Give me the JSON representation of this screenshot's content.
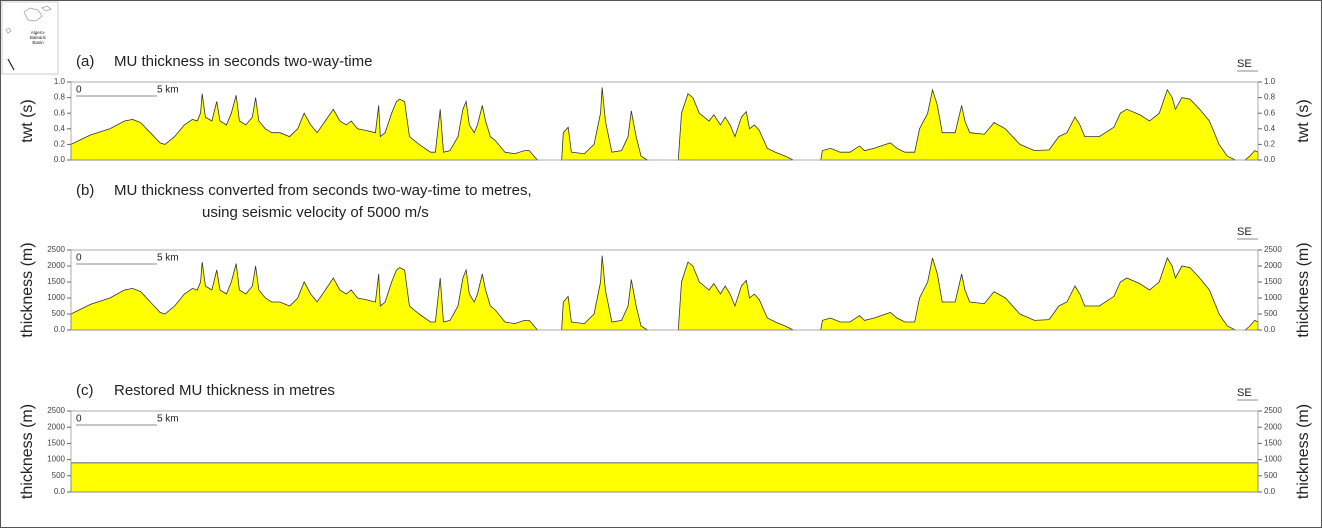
{
  "inset_label": [
    "Algero-",
    "Balearic",
    "Basin"
  ],
  "chart_data": [
    {
      "type": "area",
      "panel_label": "(a)",
      "title": "MU thickness in seconds two-way-time",
      "direction_label": "SE",
      "y_label": "twt (s)",
      "color": "#ffff00",
      "xlim": [
        0,
        73.3
      ],
      "ylim": [
        0,
        1.0
      ],
      "yticks": [
        {
          "value": 0,
          "label": "0.0"
        },
        0.2,
        0.4,
        0.6,
        0.8,
        {
          "value": 1,
          "label": "1.0"
        }
      ],
      "scale_bar": [
        0,
        {
          "value": 5,
          "label": "5 km"
        }
      ],
      "x": [
        0.0,
        1.2,
        2.4,
        3.3,
        3.8,
        4.3,
        4.9,
        5.5,
        5.8,
        6.4,
        7.0,
        7.5,
        7.8,
        8.0,
        8.1,
        8.3,
        8.7,
        9.0,
        9.2,
        9.6,
        9.9,
        10.2,
        10.4,
        10.8,
        11.2,
        11.4,
        11.6,
        12.0,
        12.4,
        12.9,
        13.5,
        14.0,
        14.4,
        14.8,
        15.2,
        15.7,
        16.2,
        16.6,
        17.0,
        17.3,
        17.7,
        18.2,
        18.8,
        19.0,
        19.1,
        19.4,
        19.8,
        20.1,
        20.3,
        20.6,
        20.9,
        21.5,
        22.2,
        22.5,
        22.8,
        23.0,
        23.4,
        23.9,
        24.2,
        24.4,
        24.6,
        24.9,
        25.1,
        25.4,
        25.6,
        25.9,
        26.2,
        26.8,
        27.4,
        28.0,
        28.3,
        28.8,
        29.5,
        30.3,
        30.4,
        30.7,
        30.9,
        31.7,
        32.3,
        32.7,
        32.8,
        33.0,
        33.4,
        34.0,
        34.4,
        34.6,
        34.9,
        35.2,
        35.6,
        36.8,
        37.5,
        37.7,
        38.1,
        38.4,
        38.8,
        39.1,
        39.4,
        39.7,
        40.1,
        40.4,
        40.7,
        41.0,
        41.4,
        41.7,
        41.9,
        42.2,
        42.5,
        43.0,
        43.5,
        44.1,
        44.6,
        45.5,
        46.3,
        46.4,
        46.9,
        47.5,
        48.1,
        48.7,
        49.0,
        49.6,
        50.6,
        51.0,
        51.5,
        52.1,
        52.4,
        52.9,
        53.2,
        53.5,
        53.8,
        54.6,
        55.0,
        55.2,
        55.5,
        56.4,
        57.0,
        57.7,
        58.6,
        59.5,
        60.4,
        61.0,
        61.5,
        62.0,
        62.3,
        62.6,
        63.5,
        64.4,
        64.8,
        65.2,
        66.0,
        66.6,
        67.2,
        67.7,
        68.0,
        68.2,
        68.6,
        69.1,
        69.7,
        70.3,
        70.9,
        71.4,
        71.9,
        72.3,
        72.5,
        72.8,
        73.1,
        73.3
      ],
      "values": [
        0.2,
        0.32,
        0.4,
        0.5,
        0.52,
        0.48,
        0.35,
        0.22,
        0.2,
        0.3,
        0.45,
        0.52,
        0.5,
        0.6,
        0.85,
        0.55,
        0.5,
        0.75,
        0.5,
        0.45,
        0.6,
        0.83,
        0.5,
        0.45,
        0.55,
        0.8,
        0.5,
        0.4,
        0.35,
        0.35,
        0.3,
        0.4,
        0.6,
        0.45,
        0.35,
        0.5,
        0.65,
        0.5,
        0.45,
        0.5,
        0.4,
        0.38,
        0.35,
        0.7,
        0.3,
        0.35,
        0.6,
        0.75,
        0.78,
        0.75,
        0.3,
        0.2,
        0.1,
        0.1,
        0.65,
        0.1,
        0.12,
        0.3,
        0.65,
        0.75,
        0.45,
        0.35,
        0.45,
        0.7,
        0.5,
        0.3,
        0.25,
        0.1,
        0.08,
        0.12,
        0.12,
        0.0,
        null,
        0.0,
        0.35,
        0.42,
        0.1,
        0.08,
        0.2,
        0.6,
        0.93,
        0.5,
        0.1,
        0.12,
        0.3,
        0.63,
        0.3,
        0.05,
        0.0,
        null,
        0.0,
        0.6,
        0.85,
        0.8,
        0.6,
        0.55,
        0.5,
        0.58,
        0.45,
        0.55,
        0.45,
        0.3,
        0.55,
        0.62,
        0.4,
        0.45,
        0.38,
        0.15,
        0.1,
        0.05,
        0.0,
        null,
        0.0,
        0.12,
        0.15,
        0.1,
        0.1,
        0.18,
        0.12,
        0.15,
        0.22,
        0.15,
        0.1,
        0.1,
        0.4,
        0.6,
        0.9,
        0.7,
        0.35,
        0.35,
        0.7,
        0.5,
        0.35,
        0.33,
        0.48,
        0.4,
        0.2,
        0.12,
        0.13,
        0.3,
        0.35,
        0.55,
        0.45,
        0.3,
        0.3,
        0.42,
        0.6,
        0.65,
        0.58,
        0.5,
        0.6,
        0.9,
        0.8,
        0.65,
        0.8,
        0.78,
        0.65,
        0.5,
        0.2,
        0.05,
        0.0,
        null,
        0.0,
        0.05,
        0.12,
        0.1
      ]
    },
    {
      "type": "area",
      "panel_label": "(b)",
      "title": "MU thickness converted from seconds two-way-time to metres,",
      "subtitle": "using seismic velocity of 5000 m/s",
      "direction_label": "SE",
      "y_label": "thickness (m)",
      "color": "#ffff00",
      "xlim": [
        0,
        73.3
      ],
      "ylim": [
        0,
        2500
      ],
      "yticks": [
        {
          "value": 0,
          "label": "0.0"
        },
        500,
        1000,
        1500,
        2000,
        2500
      ],
      "scale_bar": [
        0,
        {
          "value": 5,
          "label": "5 km"
        }
      ],
      "x": [
        0.0,
        1.2,
        2.4,
        3.3,
        3.8,
        4.3,
        4.9,
        5.5,
        5.8,
        6.4,
        7.0,
        7.5,
        7.8,
        8.0,
        8.1,
        8.3,
        8.7,
        9.0,
        9.2,
        9.6,
        9.9,
        10.2,
        10.4,
        10.8,
        11.2,
        11.4,
        11.6,
        12.0,
        12.4,
        12.9,
        13.5,
        14.0,
        14.4,
        14.8,
        15.2,
        15.7,
        16.2,
        16.6,
        17.0,
        17.3,
        17.7,
        18.2,
        18.8,
        19.0,
        19.1,
        19.4,
        19.8,
        20.1,
        20.3,
        20.6,
        20.9,
        21.5,
        22.2,
        22.5,
        22.8,
        23.0,
        23.4,
        23.9,
        24.2,
        24.4,
        24.6,
        24.9,
        25.1,
        25.4,
        25.6,
        25.9,
        26.2,
        26.8,
        27.4,
        28.0,
        28.3,
        28.8,
        29.5,
        30.3,
        30.4,
        30.7,
        30.9,
        31.7,
        32.3,
        32.7,
        32.8,
        33.0,
        33.4,
        34.0,
        34.4,
        34.6,
        34.9,
        35.2,
        35.6,
        36.8,
        37.5,
        37.7,
        38.1,
        38.4,
        38.8,
        39.1,
        39.4,
        39.7,
        40.1,
        40.4,
        40.7,
        41.0,
        41.4,
        41.7,
        41.9,
        42.2,
        42.5,
        43.0,
        43.5,
        44.1,
        44.6,
        45.5,
        46.3,
        46.4,
        46.9,
        47.5,
        48.1,
        48.7,
        49.0,
        49.6,
        50.6,
        51.0,
        51.5,
        52.1,
        52.4,
        52.9,
        53.2,
        53.5,
        53.8,
        54.6,
        55.0,
        55.2,
        55.5,
        56.4,
        57.0,
        57.7,
        58.6,
        59.5,
        60.4,
        61.0,
        61.5,
        62.0,
        62.3,
        62.6,
        63.5,
        64.4,
        64.8,
        65.2,
        66.0,
        66.6,
        67.2,
        67.7,
        68.0,
        68.2,
        68.6,
        69.1,
        69.7,
        70.3,
        70.9,
        71.4,
        71.9,
        72.3,
        72.5,
        72.8,
        73.1,
        73.3
      ],
      "values": [
        500,
        800,
        1000,
        1250,
        1300,
        1200,
        875,
        550,
        500,
        750,
        1125,
        1300,
        1250,
        1500,
        2125,
        1375,
        1250,
        1875,
        1250,
        1125,
        1500,
        2075,
        1250,
        1125,
        1375,
        2000,
        1250,
        1000,
        875,
        875,
        750,
        1000,
        1500,
        1125,
        875,
        1250,
        1625,
        1250,
        1125,
        1250,
        1000,
        950,
        875,
        1750,
        750,
        875,
        1500,
        1875,
        1950,
        1875,
        750,
        500,
        250,
        250,
        1625,
        250,
        300,
        750,
        1625,
        1875,
        1125,
        875,
        1125,
        1750,
        1250,
        750,
        625,
        250,
        200,
        300,
        300,
        0,
        null,
        0,
        875,
        1050,
        250,
        200,
        500,
        1500,
        2325,
        1250,
        250,
        300,
        750,
        1575,
        750,
        125,
        0,
        null,
        0,
        1500,
        2125,
        2000,
        1500,
        1375,
        1250,
        1450,
        1125,
        1375,
        1125,
        750,
        1375,
        1550,
        1000,
        1125,
        950,
        375,
        250,
        125,
        0,
        null,
        0,
        300,
        375,
        250,
        250,
        450,
        300,
        375,
        550,
        375,
        250,
        250,
        1000,
        1500,
        2250,
        1750,
        875,
        875,
        1750,
        1250,
        875,
        825,
        1200,
        1000,
        500,
        300,
        325,
        750,
        875,
        1375,
        1125,
        750,
        750,
        1050,
        1500,
        1625,
        1450,
        1250,
        1500,
        2250,
        2000,
        1625,
        2000,
        1950,
        1625,
        1250,
        500,
        125,
        0,
        null,
        0,
        125,
        300,
        250
      ]
    },
    {
      "type": "area",
      "panel_label": "(c)",
      "title": "Restored MU thickness in metres",
      "direction_label": "SE",
      "y_label": "thickness (m)",
      "color": "#ffff00",
      "xlim": [
        0,
        73.3
      ],
      "ylim": [
        0,
        2500
      ],
      "yticks": [
        {
          "value": 0,
          "label": "0.0"
        },
        500,
        1000,
        1500,
        2000,
        2500
      ],
      "scale_bar": [
        0,
        {
          "value": 5,
          "label": "5 km"
        }
      ],
      "x": [
        0,
        73.3
      ],
      "values": [
        900,
        900
      ]
    }
  ]
}
